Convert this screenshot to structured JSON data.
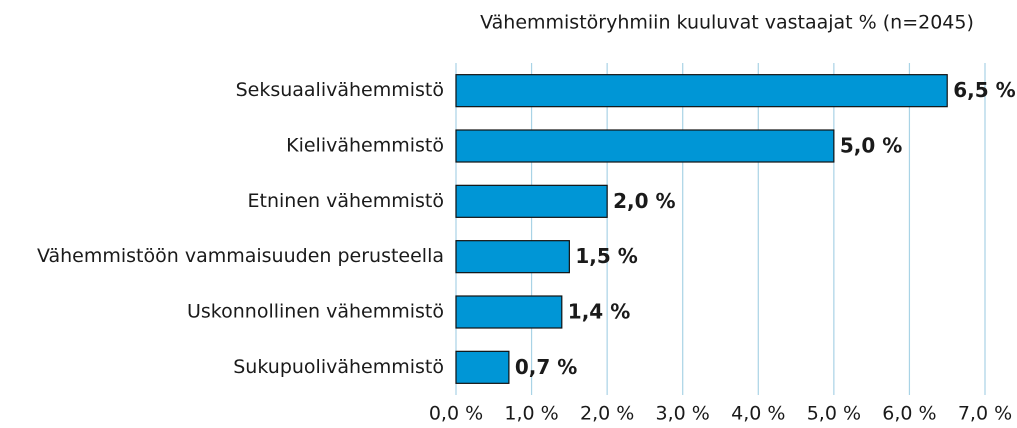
{
  "chart_data": {
    "type": "bar",
    "orientation": "horizontal",
    "title": "Vähemmistöryhmiin kuuluvat vastaajat % (n=2045)",
    "categories": [
      "Seksuaalivähemmistö",
      "Kielivähemmistö",
      "Etninen vähemmistö",
      "Vähemmistöön vammaisuuden perusteella",
      "Uskonnollinen vähemmistö",
      "Sukupuolivähemmistö"
    ],
    "values": [
      6.5,
      5.0,
      2.0,
      1.5,
      1.4,
      0.7
    ],
    "value_labels": [
      "6,5 %",
      "5,0 %",
      "2,0 %",
      "1,5 %",
      "1,4 %",
      "0,7 %"
    ],
    "color": "#0096d6",
    "xlim": [
      0,
      7
    ],
    "xticks": [
      {
        "value": 0,
        "label": "0,0 %"
      },
      {
        "value": 1,
        "label": "1,0 %"
      },
      {
        "value": 2,
        "label": "2,0 %"
      },
      {
        "value": 3,
        "label": "3,0 %"
      },
      {
        "value": 4,
        "label": "4,0 %"
      },
      {
        "value": 5,
        "label": "5,0 %"
      },
      {
        "value": 6,
        "label": "6,0 %"
      },
      {
        "value": 7,
        "label": "7,0 %"
      }
    ],
    "grid": true
  }
}
